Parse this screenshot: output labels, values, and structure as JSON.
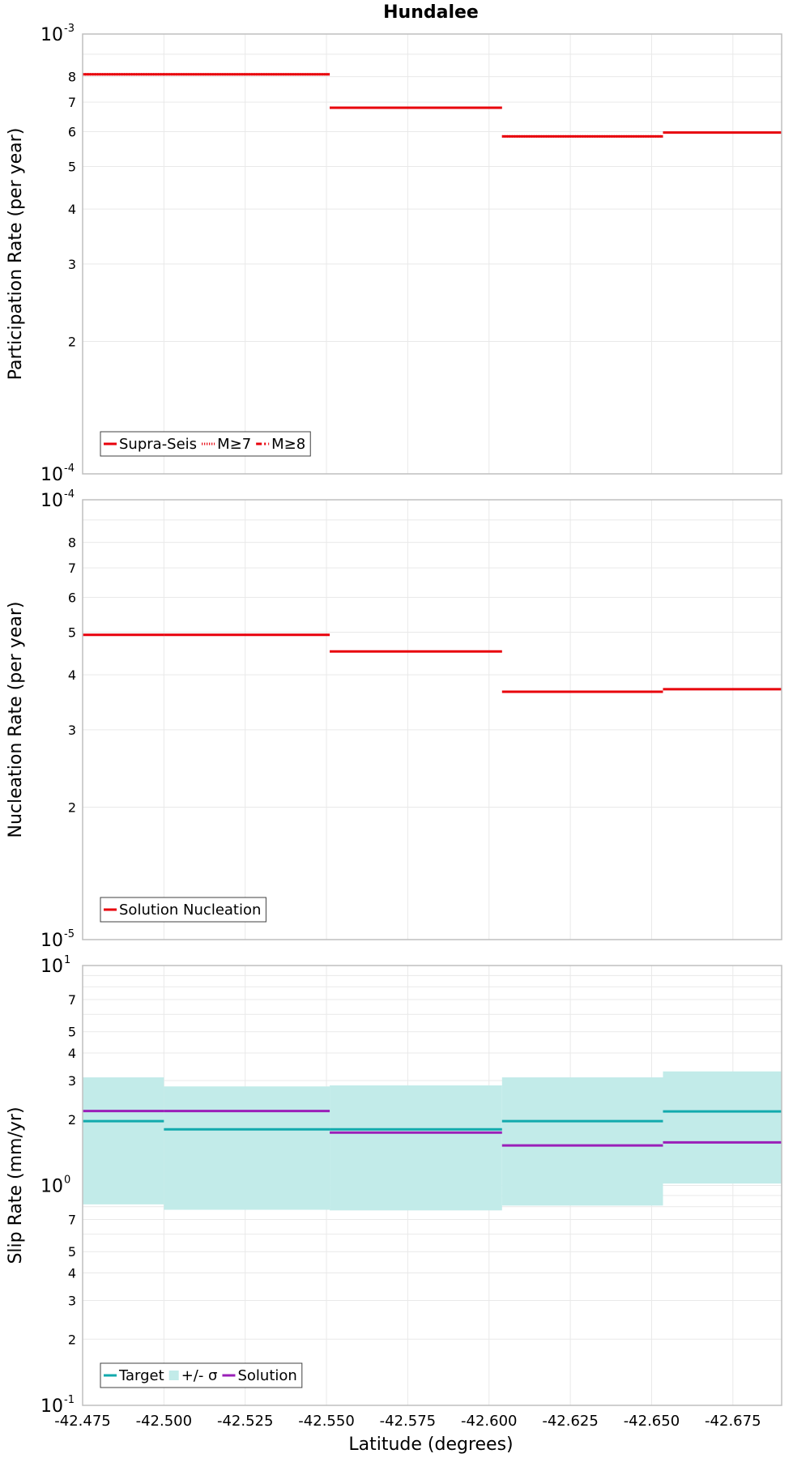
{
  "figure": {
    "title": "Hundalee",
    "xlabel": "Latitude (degrees)"
  },
  "chart_data": [
    {
      "type": "line",
      "subtype": "step",
      "ylabel": "Participation Rate (per year)",
      "yscale": "log",
      "ylim": [
        0.0001,
        0.001
      ],
      "xlim": [
        -42.475,
        -42.69
      ],
      "grid": true,
      "legend_position": "bottom-left",
      "colors": {
        "supra": "#e8000b",
        "m7": "#e8000b",
        "m8": "#e8000b"
      },
      "series": [
        {
          "name": "Supra-Seis",
          "style": "solid",
          "color": "#e8000b",
          "segments": [
            {
              "x0": -42.475,
              "x1": -42.5,
              "y": 0.00081
            },
            {
              "x0": -42.5,
              "x1": -42.551,
              "y": 0.00081
            },
            {
              "x0": -42.551,
              "x1": -42.604,
              "y": 0.00068
            },
            {
              "x0": -42.604,
              "x1": -42.6535,
              "y": 0.000585
            },
            {
              "x0": -42.6535,
              "x1": -42.69,
              "y": 0.000597
            }
          ]
        },
        {
          "name": "M≥7",
          "style": "dotted",
          "color": "#e8000b",
          "segments": [
            {
              "x0": -42.475,
              "x1": -42.5,
              "y": 0.00081
            },
            {
              "x0": -42.5,
              "x1": -42.551,
              "y": 0.00081
            },
            {
              "x0": -42.551,
              "x1": -42.604,
              "y": 0.00068
            },
            {
              "x0": -42.604,
              "x1": -42.6535,
              "y": 0.000585
            }
          ]
        },
        {
          "name": "M≥8",
          "style": "dashdot",
          "color": "#e8000b",
          "segments": []
        }
      ]
    },
    {
      "type": "line",
      "subtype": "step",
      "ylabel": "Nucleation Rate (per year)",
      "yscale": "log",
      "ylim": [
        1e-05,
        0.0001
      ],
      "xlim": [
        -42.475,
        -42.69
      ],
      "grid": true,
      "legend_position": "bottom-left",
      "series": [
        {
          "name": "Solution Nucleation",
          "style": "solid",
          "color": "#e8000b",
          "segments": [
            {
              "x0": -42.475,
              "x1": -42.5,
              "y": 4.93e-05
            },
            {
              "x0": -42.5,
              "x1": -42.551,
              "y": 4.93e-05
            },
            {
              "x0": -42.551,
              "x1": -42.604,
              "y": 4.52e-05
            },
            {
              "x0": -42.604,
              "x1": -42.6535,
              "y": 3.66e-05
            },
            {
              "x0": -42.6535,
              "x1": -42.69,
              "y": 3.71e-05
            }
          ]
        }
      ]
    },
    {
      "type": "line",
      "subtype": "step",
      "ylabel": "Slip Rate (mm/yr)",
      "yscale": "log",
      "ylim": [
        0.1,
        10
      ],
      "xlim": [
        -42.475,
        -42.69
      ],
      "grid": true,
      "legend_position": "bottom-left",
      "series": [
        {
          "name": "Target",
          "style": "solid",
          "color": "#12aaad",
          "segments": [
            {
              "x0": -42.475,
              "x1": -42.5,
              "y": 1.96
            },
            {
              "x0": -42.5,
              "x1": -42.551,
              "y": 1.8
            },
            {
              "x0": -42.551,
              "x1": -42.604,
              "y": 1.8
            },
            {
              "x0": -42.604,
              "x1": -42.6535,
              "y": 1.96
            },
            {
              "x0": -42.6535,
              "x1": -42.69,
              "y": 2.17
            }
          ]
        },
        {
          "name": "+/- σ",
          "style": "band",
          "color": "#c2ebe9",
          "segments": [
            {
              "x0": -42.475,
              "x1": -42.5,
              "low": 0.82,
              "high": 3.1
            },
            {
              "x0": -42.5,
              "x1": -42.551,
              "low": 0.775,
              "high": 2.82
            },
            {
              "x0": -42.551,
              "x1": -42.604,
              "low": 0.77,
              "high": 2.85
            },
            {
              "x0": -42.604,
              "x1": -42.6535,
              "low": 0.81,
              "high": 3.1
            },
            {
              "x0": -42.6535,
              "x1": -42.69,
              "low": 1.02,
              "high": 3.3
            }
          ]
        },
        {
          "name": "Solution",
          "style": "solid",
          "color": "#9a1fb8",
          "segments": [
            {
              "x0": -42.475,
              "x1": -42.5,
              "y": 2.18
            },
            {
              "x0": -42.5,
              "x1": -42.551,
              "y": 2.18
            },
            {
              "x0": -42.551,
              "x1": -42.604,
              "y": 1.74
            },
            {
              "x0": -42.604,
              "x1": -42.6535,
              "y": 1.52
            },
            {
              "x0": -42.6535,
              "x1": -42.69,
              "y": 1.57
            }
          ]
        }
      ]
    }
  ],
  "x_ticks": [
    "-42.475",
    "-42.500",
    "-42.525",
    "-42.550",
    "-42.575",
    "-42.600",
    "-42.625",
    "-42.650",
    "-42.675"
  ],
  "x_tick_values": [
    -42.475,
    -42.5,
    -42.525,
    -42.55,
    -42.575,
    -42.6,
    -42.625,
    -42.65,
    -42.675
  ],
  "panel_ticks": [
    {
      "major": [
        {
          "base": "10",
          "exp": "-3",
          "value": 0.001
        },
        {
          "base": "10",
          "exp": "-4",
          "value": 0.0001
        }
      ],
      "minor": [
        {
          "label": "8",
          "value": 0.0008
        },
        {
          "label": "7",
          "value": 0.0007
        },
        {
          "label": "6",
          "value": 0.0006
        },
        {
          "label": "5",
          "value": 0.0005
        },
        {
          "label": "4",
          "value": 0.0004
        },
        {
          "label": "3",
          "value": 0.0003
        },
        {
          "label": "2",
          "value": 0.0002
        }
      ],
      "unlabeled": [
        0.0009
      ]
    },
    {
      "major": [
        {
          "base": "10",
          "exp": "-4",
          "value": 0.0001
        },
        {
          "base": "10",
          "exp": "-5",
          "value": 1e-05
        }
      ],
      "minor": [
        {
          "label": "8",
          "value": 8e-05
        },
        {
          "label": "7",
          "value": 7e-05
        },
        {
          "label": "6",
          "value": 6e-05
        },
        {
          "label": "5",
          "value": 5e-05
        },
        {
          "label": "4",
          "value": 4e-05
        },
        {
          "label": "3",
          "value": 3e-05
        },
        {
          "label": "2",
          "value": 2e-05
        }
      ],
      "unlabeled": [
        9e-05
      ]
    },
    {
      "major": [
        {
          "base": "10",
          "exp": "1",
          "value": 10
        },
        {
          "base": "10",
          "exp": "0",
          "value": 1
        },
        {
          "base": "10",
          "exp": "-1",
          "value": 0.1
        }
      ],
      "minor": [
        {
          "label": "7",
          "value": 7
        },
        {
          "label": "5",
          "value": 5
        },
        {
          "label": "4",
          "value": 4
        },
        {
          "label": "3",
          "value": 3
        },
        {
          "label": "2",
          "value": 2
        },
        {
          "label": "7",
          "value": 0.7
        },
        {
          "label": "5",
          "value": 0.5
        },
        {
          "label": "4",
          "value": 0.4
        },
        {
          "label": "3",
          "value": 0.3
        },
        {
          "label": "2",
          "value": 0.2
        }
      ],
      "unlabeled": [
        9,
        8,
        6,
        0.9,
        0.8,
        0.6
      ]
    }
  ]
}
